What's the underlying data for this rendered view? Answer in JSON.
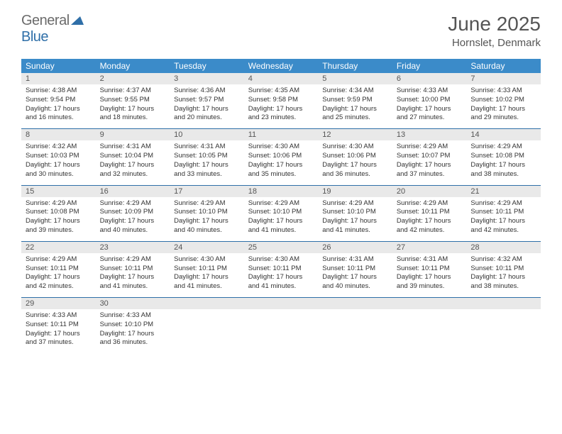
{
  "brand": {
    "part1": "General",
    "part2": "Blue"
  },
  "title": "June 2025",
  "location": "Hornslet, Denmark",
  "colors": {
    "header_bg": "#3b8bc9",
    "header_text": "#ffffff",
    "daynum_bg": "#e9e9e9",
    "grid_line": "#2f6fa8",
    "text": "#333333",
    "brand_gray": "#6b6b6b",
    "brand_blue": "#2f6fa8"
  },
  "day_names": [
    "Sunday",
    "Monday",
    "Tuesday",
    "Wednesday",
    "Thursday",
    "Friday",
    "Saturday"
  ],
  "weeks": [
    {
      "nums": [
        "1",
        "2",
        "3",
        "4",
        "5",
        "6",
        "7"
      ],
      "cells": [
        {
          "sunrise": "Sunrise: 4:38 AM",
          "sunset": "Sunset: 9:54 PM",
          "d1": "Daylight: 17 hours",
          "d2": "and 16 minutes."
        },
        {
          "sunrise": "Sunrise: 4:37 AM",
          "sunset": "Sunset: 9:55 PM",
          "d1": "Daylight: 17 hours",
          "d2": "and 18 minutes."
        },
        {
          "sunrise": "Sunrise: 4:36 AM",
          "sunset": "Sunset: 9:57 PM",
          "d1": "Daylight: 17 hours",
          "d2": "and 20 minutes."
        },
        {
          "sunrise": "Sunrise: 4:35 AM",
          "sunset": "Sunset: 9:58 PM",
          "d1": "Daylight: 17 hours",
          "d2": "and 23 minutes."
        },
        {
          "sunrise": "Sunrise: 4:34 AM",
          "sunset": "Sunset: 9:59 PM",
          "d1": "Daylight: 17 hours",
          "d2": "and 25 minutes."
        },
        {
          "sunrise": "Sunrise: 4:33 AM",
          "sunset": "Sunset: 10:00 PM",
          "d1": "Daylight: 17 hours",
          "d2": "and 27 minutes."
        },
        {
          "sunrise": "Sunrise: 4:33 AM",
          "sunset": "Sunset: 10:02 PM",
          "d1": "Daylight: 17 hours",
          "d2": "and 29 minutes."
        }
      ]
    },
    {
      "nums": [
        "8",
        "9",
        "10",
        "11",
        "12",
        "13",
        "14"
      ],
      "cells": [
        {
          "sunrise": "Sunrise: 4:32 AM",
          "sunset": "Sunset: 10:03 PM",
          "d1": "Daylight: 17 hours",
          "d2": "and 30 minutes."
        },
        {
          "sunrise": "Sunrise: 4:31 AM",
          "sunset": "Sunset: 10:04 PM",
          "d1": "Daylight: 17 hours",
          "d2": "and 32 minutes."
        },
        {
          "sunrise": "Sunrise: 4:31 AM",
          "sunset": "Sunset: 10:05 PM",
          "d1": "Daylight: 17 hours",
          "d2": "and 33 minutes."
        },
        {
          "sunrise": "Sunrise: 4:30 AM",
          "sunset": "Sunset: 10:06 PM",
          "d1": "Daylight: 17 hours",
          "d2": "and 35 minutes."
        },
        {
          "sunrise": "Sunrise: 4:30 AM",
          "sunset": "Sunset: 10:06 PM",
          "d1": "Daylight: 17 hours",
          "d2": "and 36 minutes."
        },
        {
          "sunrise": "Sunrise: 4:29 AM",
          "sunset": "Sunset: 10:07 PM",
          "d1": "Daylight: 17 hours",
          "d2": "and 37 minutes."
        },
        {
          "sunrise": "Sunrise: 4:29 AM",
          "sunset": "Sunset: 10:08 PM",
          "d1": "Daylight: 17 hours",
          "d2": "and 38 minutes."
        }
      ]
    },
    {
      "nums": [
        "15",
        "16",
        "17",
        "18",
        "19",
        "20",
        "21"
      ],
      "cells": [
        {
          "sunrise": "Sunrise: 4:29 AM",
          "sunset": "Sunset: 10:08 PM",
          "d1": "Daylight: 17 hours",
          "d2": "and 39 minutes."
        },
        {
          "sunrise": "Sunrise: 4:29 AM",
          "sunset": "Sunset: 10:09 PM",
          "d1": "Daylight: 17 hours",
          "d2": "and 40 minutes."
        },
        {
          "sunrise": "Sunrise: 4:29 AM",
          "sunset": "Sunset: 10:10 PM",
          "d1": "Daylight: 17 hours",
          "d2": "and 40 minutes."
        },
        {
          "sunrise": "Sunrise: 4:29 AM",
          "sunset": "Sunset: 10:10 PM",
          "d1": "Daylight: 17 hours",
          "d2": "and 41 minutes."
        },
        {
          "sunrise": "Sunrise: 4:29 AM",
          "sunset": "Sunset: 10:10 PM",
          "d1": "Daylight: 17 hours",
          "d2": "and 41 minutes."
        },
        {
          "sunrise": "Sunrise: 4:29 AM",
          "sunset": "Sunset: 10:11 PM",
          "d1": "Daylight: 17 hours",
          "d2": "and 42 minutes."
        },
        {
          "sunrise": "Sunrise: 4:29 AM",
          "sunset": "Sunset: 10:11 PM",
          "d1": "Daylight: 17 hours",
          "d2": "and 42 minutes."
        }
      ]
    },
    {
      "nums": [
        "22",
        "23",
        "24",
        "25",
        "26",
        "27",
        "28"
      ],
      "cells": [
        {
          "sunrise": "Sunrise: 4:29 AM",
          "sunset": "Sunset: 10:11 PM",
          "d1": "Daylight: 17 hours",
          "d2": "and 42 minutes."
        },
        {
          "sunrise": "Sunrise: 4:29 AM",
          "sunset": "Sunset: 10:11 PM",
          "d1": "Daylight: 17 hours",
          "d2": "and 41 minutes."
        },
        {
          "sunrise": "Sunrise: 4:30 AM",
          "sunset": "Sunset: 10:11 PM",
          "d1": "Daylight: 17 hours",
          "d2": "and 41 minutes."
        },
        {
          "sunrise": "Sunrise: 4:30 AM",
          "sunset": "Sunset: 10:11 PM",
          "d1": "Daylight: 17 hours",
          "d2": "and 41 minutes."
        },
        {
          "sunrise": "Sunrise: 4:31 AM",
          "sunset": "Sunset: 10:11 PM",
          "d1": "Daylight: 17 hours",
          "d2": "and 40 minutes."
        },
        {
          "sunrise": "Sunrise: 4:31 AM",
          "sunset": "Sunset: 10:11 PM",
          "d1": "Daylight: 17 hours",
          "d2": "and 39 minutes."
        },
        {
          "sunrise": "Sunrise: 4:32 AM",
          "sunset": "Sunset: 10:11 PM",
          "d1": "Daylight: 17 hours",
          "d2": "and 38 minutes."
        }
      ]
    },
    {
      "nums": [
        "29",
        "30",
        "",
        "",
        "",
        "",
        ""
      ],
      "cells": [
        {
          "sunrise": "Sunrise: 4:33 AM",
          "sunset": "Sunset: 10:11 PM",
          "d1": "Daylight: 17 hours",
          "d2": "and 37 minutes."
        },
        {
          "sunrise": "Sunrise: 4:33 AM",
          "sunset": "Sunset: 10:10 PM",
          "d1": "Daylight: 17 hours",
          "d2": "and 36 minutes."
        },
        null,
        null,
        null,
        null,
        null
      ]
    }
  ]
}
